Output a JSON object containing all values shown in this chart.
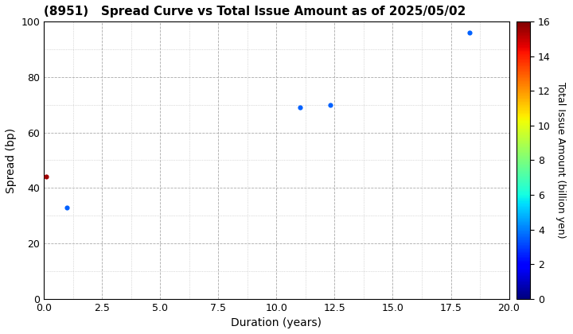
{
  "title": "(8951)   Spread Curve vs Total Issue Amount as of 2025/05/02",
  "xlabel": "Duration (years)",
  "ylabel": "Spread (bp)",
  "colorbar_label": "Total Issue Amount (billion yen)",
  "xlim": [
    0.0,
    20.0
  ],
  "ylim": [
    0.0,
    100.0
  ],
  "xticks": [
    0.0,
    2.5,
    5.0,
    7.5,
    10.0,
    12.5,
    15.0,
    17.5,
    20.0
  ],
  "yticks": [
    0,
    20,
    40,
    60,
    80,
    100
  ],
  "colorbar_min": 0,
  "colorbar_max": 16,
  "colorbar_ticks": [
    0,
    2,
    4,
    6,
    8,
    10,
    12,
    14,
    16
  ],
  "points": [
    {
      "duration": 0.08,
      "spread": 44,
      "issue_amount": 15.5
    },
    {
      "duration": 1.0,
      "spread": 33,
      "issue_amount": 3.5
    },
    {
      "duration": 11.0,
      "spread": 69,
      "issue_amount": 3.5
    },
    {
      "duration": 12.3,
      "spread": 70,
      "issue_amount": 3.5
    },
    {
      "duration": 18.3,
      "spread": 96,
      "issue_amount": 3.5
    }
  ],
  "marker_size": 20,
  "background_color": "#ffffff",
  "title_fontsize": 11,
  "axis_fontsize": 10,
  "tick_fontsize": 9,
  "colorbar_fontsize": 9
}
